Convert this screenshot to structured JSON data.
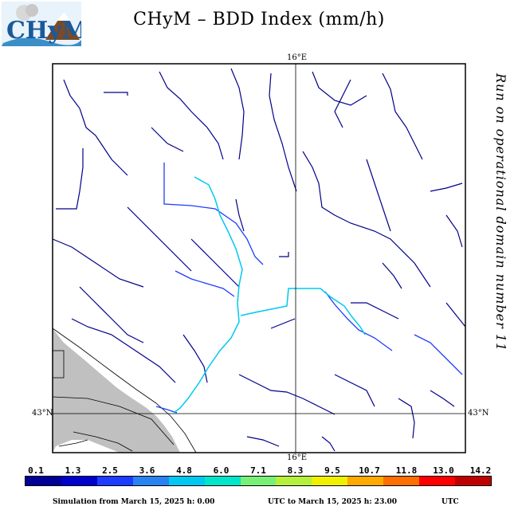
{
  "header": {
    "title": "CHyM – BDD Index (mm/h)",
    "logo_text": "CHyM"
  },
  "side_note": "Run on operational domain number 11",
  "axes": {
    "lon_top": "16°E",
    "lon_bottom": "16°E",
    "lat_left": "43°N",
    "lat_right": "43°N"
  },
  "colorbar": {
    "labels": [
      "0.1",
      "1.3",
      "2.5",
      "3.6",
      "4.8",
      "6.0",
      "7.1",
      "8.3",
      "9.5",
      "10.7",
      "11.8",
      "13.0",
      "14.2"
    ],
    "colors": [
      "#000096",
      "#0000cd",
      "#1e3cff",
      "#2882f0",
      "#00c8f0",
      "#00e6c8",
      "#78f078",
      "#b4f03c",
      "#f0f000",
      "#ffaa00",
      "#ff6e00",
      "#ff0000",
      "#be0000"
    ]
  },
  "footer": {
    "left": "Simulation from March 15, 2025 h: 0.00",
    "right_a": "UTC to March 15, 2025 h: 23.00",
    "right_b": "UTC"
  },
  "colors": {
    "river_main": "#00008b",
    "river_mid": "#1e3cff",
    "river_high": "#00c8f0",
    "land_mask": "#c0c0c0"
  }
}
